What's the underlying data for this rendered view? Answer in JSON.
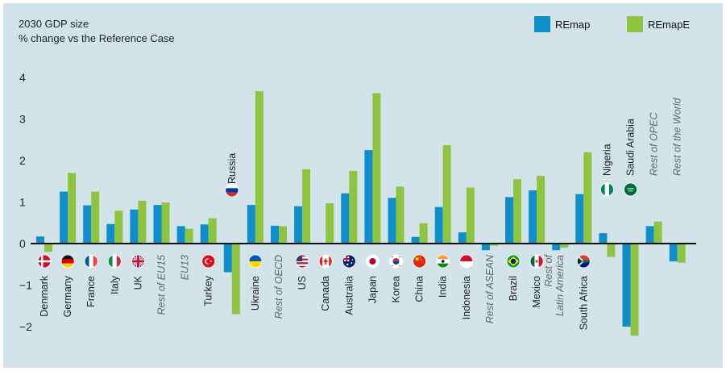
{
  "chart_data": {
    "type": "bar",
    "title": "2030 GDP size",
    "subtitle": "% change vs the Reference Case",
    "xlabel": "",
    "ylabel": "",
    "ylim": [
      -2.3,
      4.3
    ],
    "yticks": [
      4,
      3,
      2,
      1,
      0,
      -1,
      -2
    ],
    "grid": false,
    "legend_position": "top-right",
    "categories": [
      "Denmark",
      "Germany",
      "France",
      "Italy",
      "UK",
      "Rest of EU15",
      "EU13",
      "Turkey",
      "Russia",
      "Ukraine",
      "Rest of OECD",
      "US",
      "Canada",
      "Australia",
      "Japan",
      "Korea",
      "China",
      "India",
      "Indonesia",
      "Rest of ASEAN",
      "Brazil",
      "Mexico",
      "Rest of Latin America",
      "South Africa",
      "Nigeria",
      "Saudi Arabia",
      "Rest of OPEC",
      "Rest of the World"
    ],
    "label_lines": [
      [
        "Denmark"
      ],
      [
        "Germany"
      ],
      [
        "France"
      ],
      [
        "Italy"
      ],
      [
        "UK"
      ],
      [
        "Rest of EU15"
      ],
      [
        "EU13"
      ],
      [
        "Turkey"
      ],
      [
        "Russia"
      ],
      [
        "Ukraine"
      ],
      [
        "Rest of OECD"
      ],
      [
        "US"
      ],
      [
        "Canada"
      ],
      [
        "Australia"
      ],
      [
        "Japan"
      ],
      [
        "Korea"
      ],
      [
        "China"
      ],
      [
        "India"
      ],
      [
        "Indonesia"
      ],
      [
        "Rest of ASEAN"
      ],
      [
        "Brazil"
      ],
      [
        "Mexico"
      ],
      [
        "Rest of",
        "Latin America"
      ],
      [
        "South Africa"
      ],
      [
        "Nigeria"
      ],
      [
        "Saudi Arabia"
      ],
      [
        "Rest of OPEC"
      ],
      [
        "Rest of the World"
      ]
    ],
    "italic_categories": [
      "Rest of EU15",
      "EU13",
      "Rest of OECD",
      "Rest of ASEAN",
      "Rest of Latin America",
      "Rest of OPEC",
      "Rest of the World"
    ],
    "flags": [
      "denmark-flag",
      "germany-flag",
      "france-flag",
      "italy-flag",
      "uk-flag",
      "",
      "",
      "turkey-flag",
      "russia-flag",
      "ukraine-flag",
      "",
      "us-flag",
      "canada-flag",
      "australia-flag",
      "japan-flag",
      "korea-flag",
      "china-flag",
      "india-flag",
      "indonesia-flag",
      "",
      "brazil-flag",
      "mexico-flag",
      "",
      "south-africa-flag",
      "nigeria-flag",
      "saudi-arabia-flag",
      "",
      ""
    ],
    "series": [
      {
        "name": "REmap",
        "color": "#0e8fcc",
        "values": [
          0.17,
          1.25,
          0.92,
          0.47,
          0.82,
          0.93,
          0.42,
          0.46,
          -0.69,
          0.93,
          0.43,
          0.9,
          0.0,
          1.21,
          2.25,
          1.1,
          0.16,
          0.88,
          0.27,
          -0.16,
          1.12,
          1.28,
          -0.16,
          1.19,
          0.25,
          -2.0,
          0.42,
          -0.43
        ]
      },
      {
        "name": "REmapE",
        "color": "#8dc540",
        "values": [
          -0.2,
          1.7,
          1.25,
          0.79,
          1.03,
          0.99,
          0.36,
          0.61,
          -1.7,
          3.67,
          0.42,
          1.79,
          0.97,
          1.75,
          3.62,
          1.37,
          0.49,
          2.37,
          1.35,
          -0.05,
          1.55,
          1.63,
          -0.1,
          2.2,
          -0.32,
          -2.22,
          0.53,
          -0.46
        ]
      }
    ]
  }
}
